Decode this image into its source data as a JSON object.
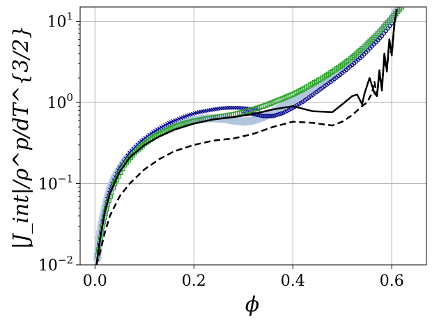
{
  "chart_data": {
    "type": "scatter",
    "title": "",
    "xlabel": "ϕ",
    "ylabel": "|J_int|/ρ^p/dT^{3/2}",
    "xlim": [
      -0.03,
      0.67
    ],
    "ylim": [
      0.01,
      15
    ],
    "yscale": "log",
    "grid": true,
    "legend": "none",
    "x_ticks": [
      0.0,
      0.2,
      0.4,
      0.6
    ],
    "x_tick_labels": [
      "0.0",
      "0.2",
      "0.4",
      "0.6"
    ],
    "y_ticks": [
      0.01,
      0.1,
      1,
      10
    ],
    "y_tick_labels": [
      {
        "base": "10",
        "exp": "−2"
      },
      {
        "base": "10",
        "exp": "−1"
      },
      {
        "base": "10",
        "exp": "0"
      },
      {
        "base": "10",
        "exp": "1"
      }
    ],
    "series": [
      {
        "style": "scatter",
        "marker": "o",
        "color": "#b0c4de",
        "filled": true,
        "x": [
          0.005,
          0.01,
          0.02,
          0.03,
          0.04,
          0.06,
          0.08,
          0.1,
          0.12,
          0.14,
          0.16,
          0.18,
          0.2,
          0.22,
          0.24,
          0.26,
          0.28,
          0.3,
          0.32,
          0.34,
          0.36,
          0.38,
          0.4,
          0.42,
          0.44,
          0.46,
          0.48,
          0.5,
          0.52,
          0.54,
          0.56,
          0.58,
          0.6,
          0.61
        ],
        "y": [
          0.012,
          0.025,
          0.05,
          0.085,
          0.12,
          0.19,
          0.26,
          0.33,
          0.4,
          0.46,
          0.51,
          0.56,
          0.6,
          0.63,
          0.64,
          0.63,
          0.6,
          0.58,
          0.6,
          0.66,
          0.76,
          0.9,
          1.06,
          1.27,
          1.5,
          1.8,
          2.2,
          2.7,
          3.4,
          4.3,
          5.6,
          7.6,
          10.5,
          13.5
        ]
      },
      {
        "style": "scatter",
        "marker": "x",
        "color": "#00008b",
        "x": [
          0.006,
          0.015,
          0.025,
          0.035,
          0.05,
          0.07,
          0.09,
          0.11,
          0.13,
          0.15,
          0.17,
          0.19,
          0.21,
          0.23,
          0.25,
          0.27,
          0.29,
          0.31,
          0.33
        ],
        "y": [
          0.015,
          0.035,
          0.065,
          0.1,
          0.16,
          0.24,
          0.32,
          0.4,
          0.48,
          0.56,
          0.63,
          0.7,
          0.76,
          0.8,
          0.84,
          0.86,
          0.86,
          0.84,
          0.82
        ]
      },
      {
        "style": "scatter",
        "marker": "o",
        "color": "#00008b",
        "filled": false,
        "x": [
          0.3,
          0.32,
          0.34,
          0.36,
          0.38,
          0.4,
          0.42,
          0.44,
          0.46,
          0.48,
          0.5,
          0.52,
          0.54,
          0.56,
          0.58,
          0.6
        ],
        "y": [
          0.78,
          0.72,
          0.68,
          0.68,
          0.74,
          0.86,
          1.02,
          1.24,
          1.52,
          1.86,
          2.3,
          2.9,
          3.7,
          4.9,
          6.6,
          9.4
        ]
      },
      {
        "style": "scatter",
        "marker": "s",
        "color": "#2ca02c",
        "filled": false,
        "x": [
          0.005,
          0.015,
          0.025,
          0.04,
          0.06,
          0.08,
          0.1,
          0.12,
          0.14,
          0.16,
          0.18,
          0.2,
          0.22,
          0.24,
          0.26,
          0.28,
          0.3,
          0.32,
          0.34,
          0.36,
          0.38,
          0.4,
          0.42,
          0.44,
          0.46,
          0.48,
          0.5,
          0.52,
          0.54,
          0.56,
          0.58,
          0.6,
          0.62
        ],
        "y": [
          0.013,
          0.03,
          0.055,
          0.1,
          0.17,
          0.24,
          0.31,
          0.38,
          0.44,
          0.5,
          0.55,
          0.59,
          0.62,
          0.65,
          0.68,
          0.71,
          0.76,
          0.82,
          0.9,
          1.0,
          1.12,
          1.26,
          1.45,
          1.7,
          2.0,
          2.4,
          2.9,
          3.6,
          4.6,
          6.0,
          8.0,
          11.0,
          15.0
        ]
      },
      {
        "style": "line",
        "color": "#000000",
        "dash": "solid",
        "x": [
          0.003,
          0.01,
          0.02,
          0.03,
          0.05,
          0.07,
          0.1,
          0.13,
          0.16,
          0.2,
          0.24,
          0.28,
          0.32,
          0.36,
          0.4,
          0.44,
          0.48,
          0.5,
          0.52,
          0.53,
          0.54,
          0.545,
          0.555,
          0.565,
          0.57,
          0.575,
          0.58,
          0.585,
          0.59,
          0.595,
          0.6,
          0.605,
          0.61
        ],
        "y": [
          0.01,
          0.02,
          0.045,
          0.075,
          0.14,
          0.21,
          0.3,
          0.38,
          0.46,
          0.55,
          0.62,
          0.66,
          0.72,
          0.82,
          0.9,
          0.78,
          0.76,
          0.95,
          1.2,
          1.25,
          0.95,
          1.3,
          2.0,
          1.3,
          1.2,
          2.5,
          1.4,
          4.0,
          2.5,
          6.0,
          4.0,
          9.0,
          14.0
        ]
      },
      {
        "style": "line",
        "color": "#000000",
        "dash": "dashed",
        "x": [
          0.003,
          0.01,
          0.02,
          0.03,
          0.05,
          0.07,
          0.1,
          0.13,
          0.16,
          0.2,
          0.24,
          0.28,
          0.32,
          0.36,
          0.4,
          0.44,
          0.48,
          0.5,
          0.52,
          0.54,
          0.55,
          0.56,
          0.565,
          0.57,
          0.575,
          0.58,
          0.585,
          0.59,
          0.595,
          0.6,
          0.605,
          0.61
        ],
        "y": [
          0.01,
          0.014,
          0.025,
          0.04,
          0.07,
          0.1,
          0.15,
          0.2,
          0.25,
          0.3,
          0.34,
          0.36,
          0.41,
          0.5,
          0.58,
          0.56,
          0.52,
          0.58,
          0.7,
          0.9,
          1.0,
          1.3,
          1.8,
          1.2,
          2.2,
          1.6,
          3.5,
          2.4,
          5.5,
          3.8,
          8.5,
          14.0
        ]
      }
    ]
  }
}
